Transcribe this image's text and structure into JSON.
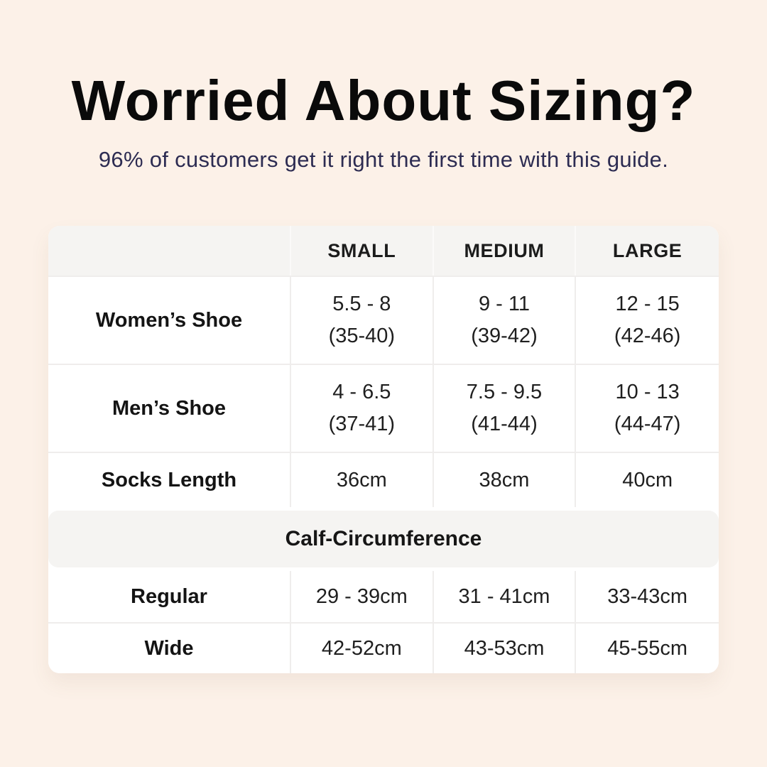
{
  "page": {
    "background_color": "#fcf1e8",
    "title": "Worried About Sizing?",
    "subtitle": "96% of customers get it right the first time with this guide.",
    "title_color": "#0a0a0a",
    "subtitle_color": "#2d2c52"
  },
  "chart_data": {
    "type": "table",
    "title": "Worried About Sizing?",
    "subtitle": "96% of customers get it right the first time with this guide.",
    "header_bg": "#f5f4f2",
    "table_bg": "#ffffff",
    "columns": [
      "",
      "SMALL",
      "MEDIUM",
      "LARGE"
    ],
    "rows": [
      {
        "label": "Women’s Shoe",
        "cells": [
          {
            "line1": "5.5 - 8",
            "line2": "(35-40)"
          },
          {
            "line1": "9 - 11",
            "line2": "(39-42)"
          },
          {
            "line1": "12 - 15",
            "line2": "(42-46)"
          }
        ]
      },
      {
        "label": "Men’s Shoe",
        "cells": [
          {
            "line1": "4 - 6.5",
            "line2": "(37-41)"
          },
          {
            "line1": "7.5 - 9.5",
            "line2": "(41-44)"
          },
          {
            "line1": "10 - 13",
            "line2": "(44-47)"
          }
        ]
      },
      {
        "label": "Socks Length",
        "cells": [
          {
            "line1": "36cm"
          },
          {
            "line1": "38cm"
          },
          {
            "line1": "40cm"
          }
        ]
      }
    ],
    "section_header": "Calf-Circumference",
    "section_rows": [
      {
        "label": "Regular",
        "cells": [
          {
            "line1": "29 - 39cm"
          },
          {
            "line1": "31 - 41cm"
          },
          {
            "line1": "33-43cm"
          }
        ]
      },
      {
        "label": "Wide",
        "cells": [
          {
            "line1": "42-52cm"
          },
          {
            "line1": "43-53cm"
          },
          {
            "line1": "45-55cm"
          }
        ]
      }
    ]
  }
}
